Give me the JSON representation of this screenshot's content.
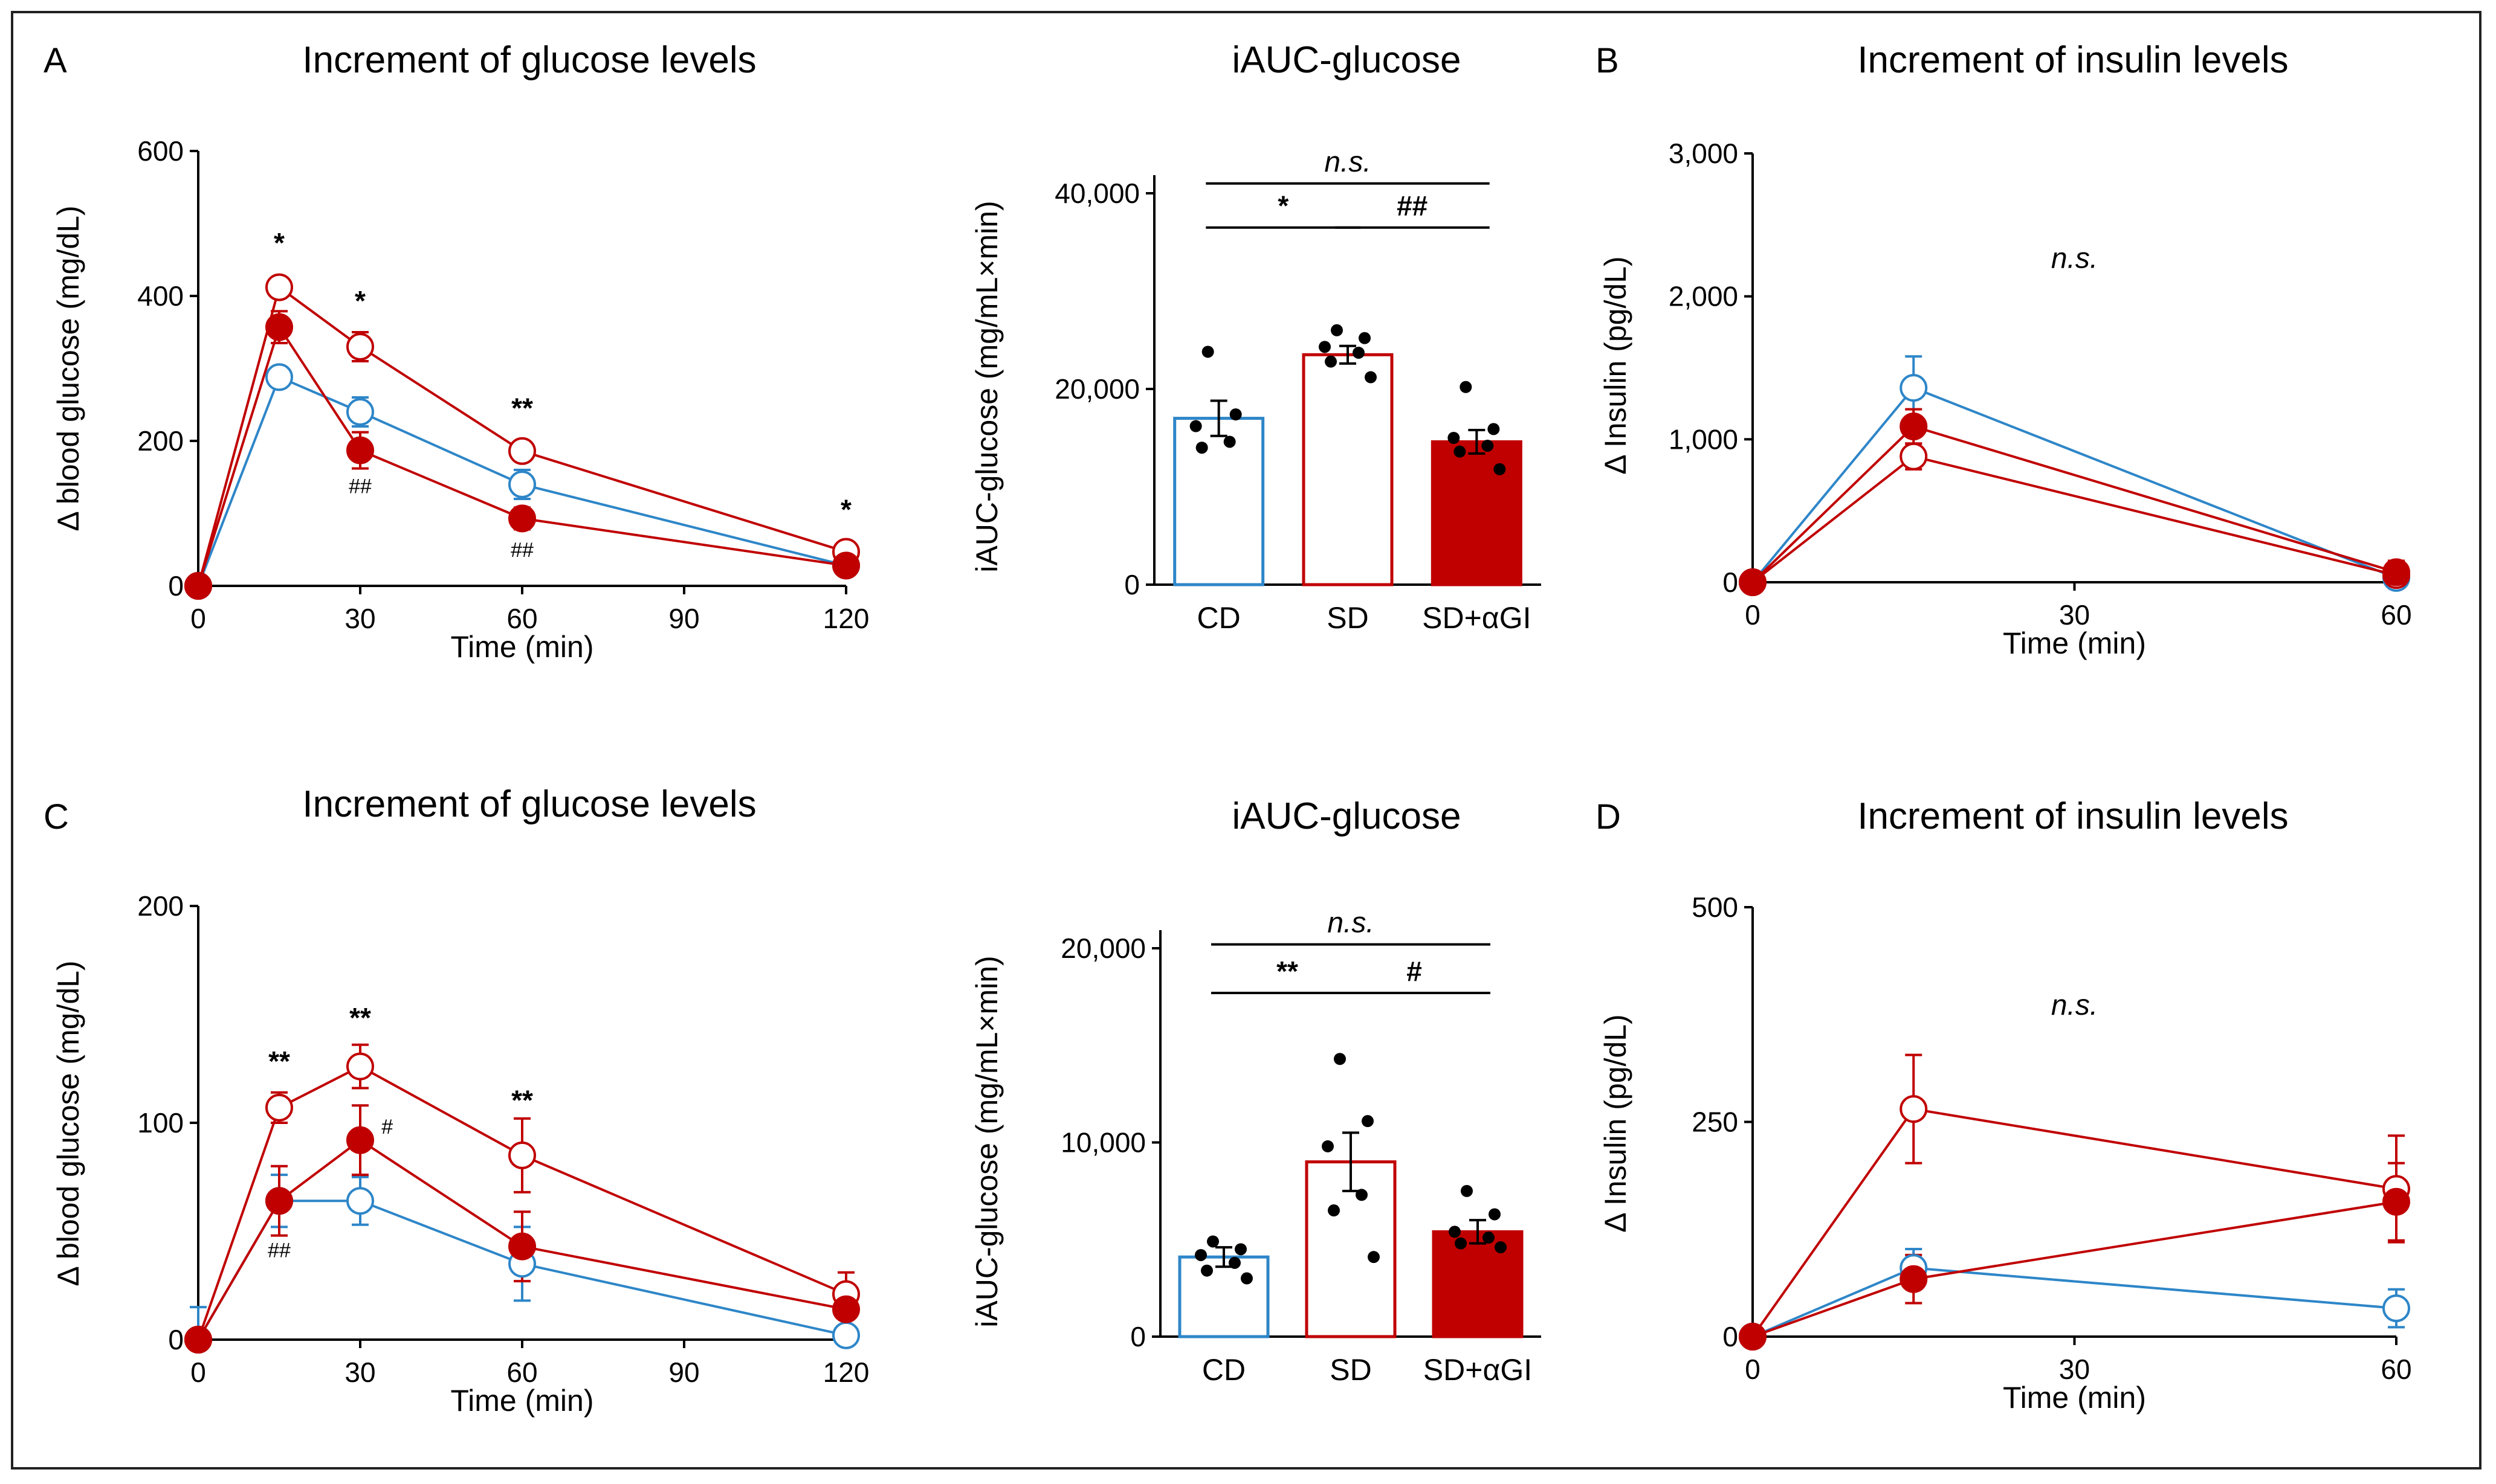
{
  "colors": {
    "cd": "#2e86c8",
    "sd": "#c00000",
    "axis": "#000000"
  },
  "chart_data": [
    {
      "id": "A-line",
      "type": "line",
      "panel_label": "A",
      "title": "Increment of glucose levels",
      "xlabel": "Time (min)",
      "ylabel": "Δ blood glucose (mg/dL)",
      "x": [
        0,
        15,
        30,
        60,
        120
      ],
      "xlim": [
        0,
        120
      ],
      "ylim": [
        0,
        600
      ],
      "xticks": [
        0,
        30,
        60,
        90,
        120
      ],
      "xtick_labels": [
        "0",
        "30",
        "60",
        "90",
        "120"
      ],
      "yticks": [
        0,
        200,
        400,
        600
      ],
      "ytick_labels": [
        "0",
        "200",
        "400",
        "600"
      ],
      "series": [
        {
          "name": "CD",
          "marker": "open",
          "color": "#2e86c8",
          "values": [
            0,
            288,
            240,
            140,
            28
          ],
          "err": [
            0,
            8,
            20,
            20,
            5
          ]
        },
        {
          "name": "SD",
          "marker": "open",
          "color": "#c00000",
          "values": [
            0,
            412,
            330,
            186,
            47
          ],
          "err": [
            0,
            10,
            20,
            12,
            8
          ]
        },
        {
          "name": "SD+αGI",
          "marker": "filled",
          "color": "#c00000",
          "values": [
            0,
            357,
            187,
            93,
            28
          ],
          "err": [
            0,
            22,
            25,
            15,
            5
          ]
        }
      ],
      "annotations": [
        {
          "text": "*",
          "x": 15,
          "y": 460,
          "style": "bold"
        },
        {
          "text": "*",
          "x": 30,
          "y": 380,
          "style": "bold"
        },
        {
          "text": "**",
          "x": 60,
          "y": 232,
          "style": "bold"
        },
        {
          "text": "*",
          "x": 120,
          "y": 92,
          "style": "bold"
        },
        {
          "text": "##",
          "x": 30,
          "y": 128,
          "style": "small"
        },
        {
          "text": "##",
          "x": 60,
          "y": 40,
          "style": "small"
        }
      ]
    },
    {
      "id": "A-bar",
      "type": "bar",
      "title": "iAUC-glucose",
      "ylabel": "iAUC-glucose (mg/mL×min)",
      "categories": [
        "CD",
        "SD",
        "SD+αGI"
      ],
      "values": [
        17000,
        23500,
        14600
      ],
      "err": [
        1800,
        900,
        1200
      ],
      "fills": [
        "#ffffff",
        "#ffffff",
        "#c00000"
      ],
      "edges": [
        "#2e86c8",
        "#c00000",
        "#c00000"
      ],
      "points": [
        [
          23800,
          17400,
          16200,
          14600,
          14000
        ],
        [
          26000,
          25200,
          24300,
          23700,
          22800,
          21200
        ],
        [
          20200,
          15900,
          15000,
          14200,
          13600,
          11800
        ]
      ],
      "ylim": [
        0,
        40000
      ],
      "yticks": [
        0,
        20000,
        40000
      ],
      "ytick_labels": [
        "0",
        "20,000",
        "40,000"
      ],
      "brackets": [
        {
          "from": 0,
          "to": 1,
          "text": "*",
          "y": 36500,
          "italic": false
        },
        {
          "from": 1,
          "to": 2,
          "text": "##",
          "y": 36500,
          "italic": false
        },
        {
          "from": 0,
          "to": 2,
          "text": "n.s.",
          "y": 41000,
          "italic": true
        }
      ]
    },
    {
      "id": "B-line",
      "type": "line",
      "panel_label": "B",
      "title": "Increment of insulin levels",
      "xlabel": "Time (min)",
      "ylabel": "Δ Insulin (pg/dL)",
      "x": [
        0,
        15,
        60
      ],
      "xlim": [
        0,
        60
      ],
      "ylim": [
        0,
        3000
      ],
      "xticks": [
        0,
        30,
        60
      ],
      "xtick_labels": [
        "0",
        "30",
        "60"
      ],
      "yticks": [
        0,
        1000,
        2000,
        3000
      ],
      "ytick_labels": [
        "0",
        "1,000",
        "2,000",
        "3,000"
      ],
      "series": [
        {
          "name": "CD",
          "marker": "open",
          "color": "#2e86c8",
          "values": [
            0,
            1360,
            30
          ],
          "err": [
            0,
            220,
            20
          ]
        },
        {
          "name": "SD",
          "marker": "open",
          "color": "#c00000",
          "values": [
            0,
            880,
            50
          ],
          "err": [
            0,
            90,
            60
          ]
        },
        {
          "name": "SD+αGI",
          "marker": "filled",
          "color": "#c00000",
          "values": [
            0,
            1090,
            70
          ],
          "err": [
            0,
            120,
            80
          ]
        }
      ],
      "annotations": [
        {
          "text": "n.s.",
          "x": 30,
          "y": 2200,
          "style": "italic"
        }
      ]
    },
    {
      "id": "C-line",
      "type": "line",
      "panel_label": "C",
      "title": "Increment of glucose levels",
      "xlabel": "Time (min)",
      "ylabel": "Δ blood glucose (mg/dL)",
      "x": [
        0,
        15,
        30,
        60,
        120
      ],
      "xlim": [
        0,
        120
      ],
      "ylim": [
        0,
        200
      ],
      "xticks": [
        0,
        30,
        60,
        90,
        120
      ],
      "xtick_labels": [
        "0",
        "30",
        "60",
        "90",
        "120"
      ],
      "yticks": [
        0,
        100,
        200
      ],
      "ytick_labels": [
        "0",
        "100",
        "200"
      ],
      "series": [
        {
          "name": "CD",
          "marker": "open",
          "color": "#2e86c8",
          "values": [
            0,
            64,
            64,
            35,
            2
          ],
          "err": [
            15,
            12,
            11,
            17,
            2
          ]
        },
        {
          "name": "SD",
          "marker": "open",
          "color": "#c00000",
          "values": [
            0,
            107,
            126,
            85,
            21
          ],
          "err": [
            0,
            7,
            10,
            17,
            10
          ]
        },
        {
          "name": "SD+αGI",
          "marker": "filled",
          "color": "#c00000",
          "values": [
            0,
            64,
            92,
            43,
            14
          ],
          "err": [
            0,
            16,
            16,
            16,
            8
          ]
        }
      ],
      "annotations": [
        {
          "text": "**",
          "x": 15,
          "y": 124,
          "style": "bold"
        },
        {
          "text": "**",
          "x": 30,
          "y": 144,
          "style": "bold"
        },
        {
          "text": "**",
          "x": 60,
          "y": 106,
          "style": "bold"
        },
        {
          "text": "#",
          "x": 35,
          "y": 95,
          "style": "small"
        },
        {
          "text": "##",
          "x": 15,
          "y": 38,
          "style": "small"
        }
      ]
    },
    {
      "id": "C-bar",
      "type": "bar",
      "title": "iAUC-glucose",
      "ylabel": "iAUC-glucose (mg/mL×min)",
      "categories": [
        "CD",
        "SD",
        "SD+αGI"
      ],
      "values": [
        4100,
        9000,
        5400
      ],
      "err": [
        500,
        1500,
        600
      ],
      "fills": [
        "#ffffff",
        "#ffffff",
        "#c00000"
      ],
      "edges": [
        "#2e86c8",
        "#c00000",
        "#c00000"
      ],
      "points": [
        [
          4900,
          4500,
          4200,
          3800,
          3400,
          3000
        ],
        [
          14300,
          11100,
          9800,
          7300,
          6500,
          4100
        ],
        [
          7500,
          6300,
          5400,
          5100,
          4800,
          4600
        ]
      ],
      "ylim": [
        0,
        20000
      ],
      "yticks": [
        0,
        10000,
        20000
      ],
      "ytick_labels": [
        "0",
        "10,000",
        "20,000"
      ],
      "brackets": [
        {
          "from": 0,
          "to": 1,
          "text": "**",
          "y": 17700,
          "italic": false
        },
        {
          "from": 1,
          "to": 2,
          "text": "#",
          "y": 17700,
          "italic": false
        },
        {
          "from": 0,
          "to": 2,
          "text": "n.s.",
          "y": 20200,
          "italic": true
        }
      ]
    },
    {
      "id": "D-line",
      "type": "line",
      "panel_label": "D",
      "title": "Increment of insulin levels",
      "xlabel": "Time (min)",
      "ylabel": "Δ Insulin (pg/dL)",
      "x": [
        0,
        15,
        60
      ],
      "xlim": [
        0,
        60
      ],
      "ylim": [
        0,
        500
      ],
      "xticks": [
        0,
        30,
        60
      ],
      "xtick_labels": [
        "0",
        "30",
        "60"
      ],
      "yticks": [
        0,
        250,
        500
      ],
      "ytick_labels": [
        "0",
        "250",
        "500"
      ],
      "series": [
        {
          "name": "CD",
          "marker": "open",
          "color": "#2e86c8",
          "values": [
            0,
            80,
            33
          ],
          "err": [
            0,
            22,
            22
          ]
        },
        {
          "name": "SD",
          "marker": "open",
          "color": "#c00000",
          "values": [
            0,
            265,
            172
          ],
          "err": [
            0,
            63,
            62
          ]
        },
        {
          "name": "SD+αGI",
          "marker": "filled",
          "color": "#c00000",
          "values": [
            0,
            67,
            157
          ],
          "err": [
            0,
            28,
            45
          ]
        }
      ],
      "annotations": [
        {
          "text": "n.s.",
          "x": 30,
          "y": 375,
          "style": "italic"
        }
      ]
    }
  ]
}
